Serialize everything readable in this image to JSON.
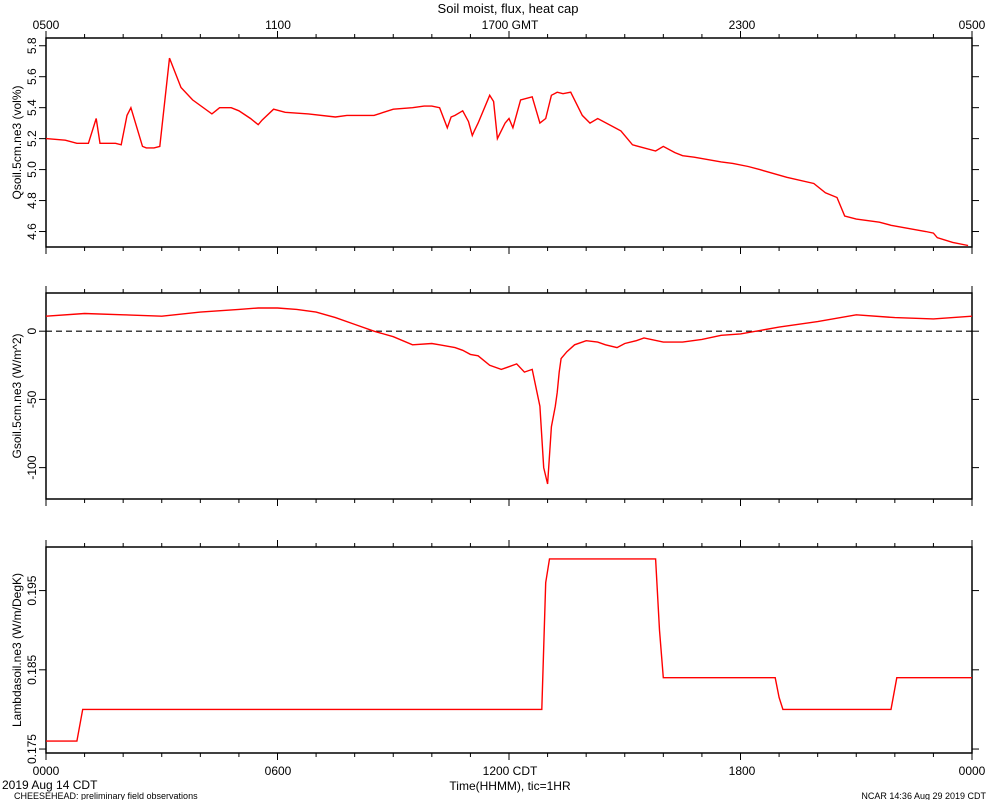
{
  "title": "Soil moist, flux, heat cap",
  "top_axis": {
    "labels": [
      "0500",
      "1100",
      "1700 GMT",
      "2300",
      "0500"
    ]
  },
  "bottom_axis": {
    "labels": [
      "0000",
      "0600",
      "1200 CDT",
      "1800",
      "0000"
    ],
    "xlabel": "Time(HHMM), tic=1HR"
  },
  "footer": {
    "date_label": "2019 Aug 14 CDT",
    "project_note": "CHEESEHEAD: preliminary field observations",
    "credit": "NCAR 14:36 Aug 29 2019 CDT"
  },
  "colors": {
    "series": "#ff0000",
    "axis": "#000000",
    "zero_line": "#000000"
  },
  "chart_data": [
    {
      "type": "line",
      "ylabel": "Qsoil.5cm.ne3 (vol%)",
      "ylim": [
        4.5,
        5.85
      ],
      "yticks": [
        4.6,
        4.8,
        5.0,
        5.2,
        5.4,
        5.6,
        5.8
      ],
      "yticklabels": [
        "4.6",
        "4.8",
        "5.0",
        "5.2",
        "5.4",
        "5.6",
        "5.8"
      ],
      "xlim": [
        0,
        24
      ],
      "series": [
        {
          "x": [
            0,
            0.5,
            0.8,
            1.1,
            1.3,
            1.4,
            1.8,
            1.95,
            2.1,
            2.2,
            2.5,
            2.6,
            2.7,
            2.8,
            2.95,
            3.2,
            3.5,
            3.8,
            4.3,
            4.4,
            4.5,
            4.8,
            5.0,
            5.3,
            5.5,
            5.6,
            5.9,
            6.2,
            6.8,
            7.5,
            7.8,
            8.5,
            9.0,
            9.5,
            9.8,
            10.0,
            10.2,
            10.4,
            10.5,
            10.6,
            10.8,
            10.95,
            11.05,
            11.1,
            11.2,
            11.5,
            11.6,
            11.7,
            11.9,
            12.0,
            12.1,
            12.3,
            12.6,
            12.8,
            12.95,
            13.1,
            13.25,
            13.4,
            13.6,
            13.9,
            14.1,
            14.3,
            14.9,
            15.2,
            15.8,
            16.0,
            16.3,
            16.5,
            16.8,
            17.5,
            17.8,
            18.2,
            18.5,
            19.2,
            19.9,
            20.2,
            20.5,
            20.7,
            21.0,
            21.6,
            21.9,
            22.8,
            23.0,
            23.1,
            23.5,
            23.9
          ],
          "y": [
            5.2,
            5.19,
            5.17,
            5.17,
            5.33,
            5.17,
            5.17,
            5.16,
            5.35,
            5.4,
            5.15,
            5.14,
            5.14,
            5.14,
            5.15,
            5.72,
            5.53,
            5.45,
            5.36,
            5.38,
            5.4,
            5.4,
            5.38,
            5.33,
            5.29,
            5.32,
            5.39,
            5.37,
            5.36,
            5.34,
            5.35,
            5.35,
            5.39,
            5.4,
            5.41,
            5.41,
            5.4,
            5.27,
            5.34,
            5.35,
            5.38,
            5.31,
            5.22,
            5.25,
            5.3,
            5.48,
            5.44,
            5.2,
            5.3,
            5.33,
            5.27,
            5.45,
            5.47,
            5.3,
            5.33,
            5.48,
            5.5,
            5.49,
            5.5,
            5.35,
            5.3,
            5.33,
            5.25,
            5.16,
            5.12,
            5.15,
            5.11,
            5.09,
            5.08,
            5.05,
            5.04,
            5.02,
            5.0,
            4.95,
            4.91,
            4.85,
            4.82,
            4.7,
            4.68,
            4.66,
            4.64,
            4.6,
            4.59,
            4.56,
            4.53,
            4.51
          ]
        }
      ]
    },
    {
      "type": "line",
      "ylabel": "Gsoil.5cm.ne3 (W/m^2)",
      "ylim": [
        -123,
        28
      ],
      "yticks": [
        -100,
        -50,
        0
      ],
      "yticklabels": [
        "-100",
        "-50",
        "0"
      ],
      "xlim": [
        0,
        24
      ],
      "reference_line": 0,
      "series": [
        {
          "x": [
            0,
            1,
            2,
            3,
            4,
            5,
            5.5,
            6,
            6.5,
            7,
            7.5,
            8,
            8.5,
            9,
            9.5,
            10,
            10.2,
            10.4,
            10.6,
            10.8,
            11,
            11.2,
            11.5,
            11.8,
            12.0,
            12.2,
            12.4,
            12.6,
            12.8,
            12.9,
            13.0,
            13.1,
            13.2,
            13.25,
            13.3,
            13.35,
            13.5,
            13.7,
            14.0,
            14.3,
            14.5,
            14.8,
            15.0,
            15.3,
            15.5,
            16.0,
            16.5,
            17,
            17.5,
            18,
            19,
            20,
            21,
            22,
            23,
            24
          ],
          "y": [
            11,
            13,
            12,
            11,
            14,
            16,
            17,
            17,
            16,
            14,
            10,
            5,
            0,
            -4,
            -10,
            -9,
            -10,
            -11,
            -12,
            -14,
            -17,
            -18,
            -25,
            -28,
            -26,
            -24,
            -30,
            -28,
            -55,
            -100,
            -112,
            -70,
            -55,
            -45,
            -30,
            -20,
            -15,
            -10,
            -7,
            -8,
            -10,
            -12,
            -9,
            -7,
            -5,
            -8,
            -8,
            -6,
            -3,
            -2,
            3,
            7,
            12,
            10,
            9,
            11
          ]
        }
      ]
    },
    {
      "type": "line",
      "ylabel": "Lambdasoil.ne3 (W/m/DegK)",
      "ylim": [
        0.1745,
        0.2005
      ],
      "yticks": [
        0.175,
        0.185,
        0.195
      ],
      "yticklabels": [
        "0.175",
        "0.185",
        "0.195"
      ],
      "xlim": [
        0,
        24
      ],
      "series": [
        {
          "x": [
            0,
            0.8,
            0.95,
            12.85,
            12.95,
            13.05,
            15.8,
            15.9,
            16.0,
            18.9,
            19.0,
            19.1,
            21.9,
            22.05,
            24
          ],
          "y": [
            0.176,
            0.176,
            0.18,
            0.18,
            0.196,
            0.199,
            0.199,
            0.19,
            0.184,
            0.184,
            0.1815,
            0.18,
            0.18,
            0.184,
            0.184
          ]
        }
      ]
    }
  ]
}
